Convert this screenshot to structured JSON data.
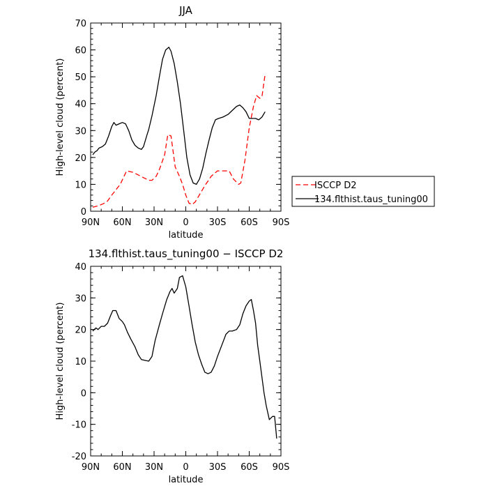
{
  "chart_data": [
    {
      "type": "line",
      "title": "JJA",
      "xlabel": "latitude",
      "ylabel": "High-level cloud (percent)",
      "xlim": [
        90,
        -90
      ],
      "ylim": [
        0,
        70
      ],
      "x_ticks": [
        {
          "value": 90,
          "label": "90N"
        },
        {
          "value": 60,
          "label": "60N"
        },
        {
          "value": 30,
          "label": "30N"
        },
        {
          "value": 0,
          "label": "0"
        },
        {
          "value": -30,
          "label": "30S"
        },
        {
          "value": -60,
          "label": "60S"
        },
        {
          "value": -90,
          "label": "90S"
        }
      ],
      "y_ticks": [
        0,
        10,
        20,
        30,
        40,
        50,
        60,
        70
      ],
      "grid": false,
      "legend_position": "right",
      "series": [
        {
          "name": "ISCCP D2",
          "color": "#ff0000",
          "dash": "dashed",
          "points": [
            [
              88,
              1.5
            ],
            [
              83,
              2
            ],
            [
              78,
              2.8
            ],
            [
              74,
              3.8
            ],
            [
              70,
              6
            ],
            [
              66,
              8
            ],
            [
              62,
              10
            ],
            [
              59,
              12.5
            ],
            [
              56,
              15
            ],
            [
              50,
              14.5
            ],
            [
              45,
              13.5
            ],
            [
              40,
              12.5
            ],
            [
              35,
              11.5
            ],
            [
              32,
              11.5
            ],
            [
              28,
              13
            ],
            [
              25,
              15.5
            ],
            [
              20,
              21
            ],
            [
              17,
              28.5
            ],
            [
              14,
              28
            ],
            [
              10,
              16.5
            ],
            [
              6,
              13
            ],
            [
              3,
              10
            ],
            [
              0,
              6
            ],
            [
              -3,
              3
            ],
            [
              -6,
              2.5
            ],
            [
              -9,
              3.5
            ],
            [
              -12,
              5.5
            ],
            [
              -18,
              9.5
            ],
            [
              -24,
              13
            ],
            [
              -30,
              15
            ],
            [
              -36,
              15
            ],
            [
              -41,
              15
            ],
            [
              -45,
              12
            ],
            [
              -50,
              10
            ],
            [
              -52,
              10.5
            ],
            [
              -56,
              19
            ],
            [
              -60,
              31
            ],
            [
              -64,
              39
            ],
            [
              -67,
              43
            ],
            [
              -70,
              42
            ],
            [
              -72,
              42.5
            ],
            [
              -75,
              51
            ]
          ]
        },
        {
          "name": "134.flthist.taus_tuning00",
          "color": "#000000",
          "dash": "solid",
          "points": [
            [
              88,
              21
            ],
            [
              86,
              22
            ],
            [
              84,
              22.5
            ],
            [
              82,
              23.5
            ],
            [
              79,
              24
            ],
            [
              76,
              25
            ],
            [
              73,
              28
            ],
            [
              70,
              31.5
            ],
            [
              68,
              33
            ],
            [
              66,
              32
            ],
            [
              63,
              32.5
            ],
            [
              60,
              33
            ],
            [
              57,
              32.5
            ],
            [
              54,
              30
            ],
            [
              51,
              26.5
            ],
            [
              48,
              24.5
            ],
            [
              45,
              23.5
            ],
            [
              42,
              23
            ],
            [
              40,
              24
            ],
            [
              37,
              28
            ],
            [
              35,
              30.5
            ],
            [
              32,
              35.5
            ],
            [
              28,
              43
            ],
            [
              25,
              50
            ],
            [
              22,
              56.5
            ],
            [
              19,
              60
            ],
            [
              16,
              61
            ],
            [
              14,
              59.5
            ],
            [
              11,
              55
            ],
            [
              8,
              48
            ],
            [
              5,
              40
            ],
            [
              2,
              30
            ],
            [
              -1,
              20
            ],
            [
              -4,
              13.5
            ],
            [
              -7,
              10.5
            ],
            [
              -10,
              10
            ],
            [
              -13,
              12
            ],
            [
              -16,
              16
            ],
            [
              -19,
              21.5
            ],
            [
              -22,
              26.5
            ],
            [
              -25,
              31
            ],
            [
              -28,
              34
            ],
            [
              -31,
              34.5
            ],
            [
              -35,
              35
            ],
            [
              -40,
              36
            ],
            [
              -44,
              37.5
            ],
            [
              -48,
              39
            ],
            [
              -51,
              39.5
            ],
            [
              -54,
              38.5
            ],
            [
              -57,
              37
            ],
            [
              -60,
              34.5
            ],
            [
              -63,
              34.5
            ],
            [
              -66,
              34.5
            ],
            [
              -69,
              34
            ],
            [
              -72,
              35
            ],
            [
              -75,
              37
            ]
          ]
        }
      ]
    },
    {
      "type": "line",
      "title": "134.flthist.taus_tuning00 − ISCCP D2",
      "xlabel": "latitude",
      "ylabel": "High-level cloud (percent)",
      "xlim": [
        90,
        -90
      ],
      "ylim": [
        -20,
        40
      ],
      "x_ticks": [
        {
          "value": 90,
          "label": "90N"
        },
        {
          "value": 60,
          "label": "60N"
        },
        {
          "value": 30,
          "label": "30N"
        },
        {
          "value": 0,
          "label": "0"
        },
        {
          "value": -30,
          "label": "30S"
        },
        {
          "value": -60,
          "label": "60S"
        },
        {
          "value": -90,
          "label": "90S"
        }
      ],
      "y_ticks": [
        -20,
        -10,
        0,
        10,
        20,
        30,
        40
      ],
      "grid": false,
      "series": [
        {
          "color": "#000000",
          "dash": "solid",
          "points": [
            [
              88,
              19.5
            ],
            [
              85,
              20.5
            ],
            [
              83,
              20
            ],
            [
              80,
              21
            ],
            [
              77,
              21
            ],
            [
              74,
              22
            ],
            [
              71,
              24.5
            ],
            [
              69,
              26
            ],
            [
              66,
              26
            ],
            [
              63,
              23.5
            ],
            [
              60,
              22.5
            ],
            [
              58,
              21.5
            ],
            [
              55,
              19
            ],
            [
              52,
              17
            ],
            [
              48,
              14.5
            ],
            [
              45,
              12
            ],
            [
              42,
              10.5
            ],
            [
              38,
              10.2
            ],
            [
              35,
              10
            ],
            [
              32,
              11.5
            ],
            [
              29,
              16.5
            ],
            [
              25,
              21.5
            ],
            [
              22,
              25
            ],
            [
              18,
              29.5
            ],
            [
              15,
              32
            ],
            [
              13,
              33
            ],
            [
              11,
              31.5
            ],
            [
              8,
              33
            ],
            [
              6,
              36.5
            ],
            [
              3,
              37
            ],
            [
              0,
              33.5
            ],
            [
              -3,
              27.5
            ],
            [
              -6,
              21.5
            ],
            [
              -9,
              16
            ],
            [
              -12,
              12
            ],
            [
              -15,
              9
            ],
            [
              -18,
              6.5
            ],
            [
              -21,
              6
            ],
            [
              -24,
              6.5
            ],
            [
              -27,
              8.5
            ],
            [
              -30,
              11.5
            ],
            [
              -34,
              15
            ],
            [
              -38,
              18.5
            ],
            [
              -41,
              19.5
            ],
            [
              -44,
              19.5
            ],
            [
              -48,
              20
            ],
            [
              -51,
              21.5
            ],
            [
              -54,
              25
            ],
            [
              -57,
              27.5
            ],
            [
              -60,
              29
            ],
            [
              -62,
              29.5
            ],
            [
              -64,
              26
            ],
            [
              -66,
              22
            ],
            [
              -68,
              15
            ],
            [
              -70,
              10
            ],
            [
              -72,
              5
            ],
            [
              -74,
              0
            ],
            [
              -76,
              -4
            ],
            [
              -79,
              -8.5
            ],
            [
              -82,
              -7.5
            ],
            [
              -84,
              -7.5
            ],
            [
              -86,
              -14.5
            ]
          ]
        }
      ]
    }
  ]
}
